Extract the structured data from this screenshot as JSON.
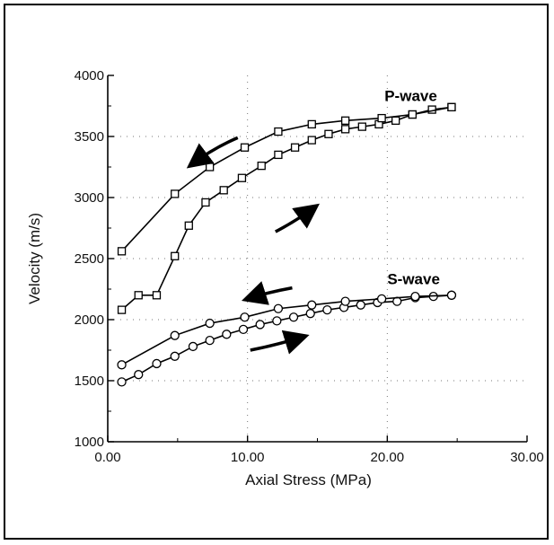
{
  "chart_data": {
    "type": "line",
    "xlabel": "Axial Stress (MPa)",
    "ylabel": "Velocity (m/s)",
    "xlim": [
      0,
      30
    ],
    "ylim": [
      1000,
      4000
    ],
    "x_ticks": [
      "0.00",
      "10.00",
      "20.00",
      "30.00"
    ],
    "y_ticks": [
      "1000",
      "1500",
      "2000",
      "2500",
      "3000",
      "3500",
      "4000"
    ],
    "grid": "dotted",
    "series": [
      {
        "name": "P-wave",
        "segment": "loading",
        "marker": "square",
        "x": [
          1.0,
          2.2,
          3.5,
          4.8,
          5.8,
          7.0,
          8.3,
          9.6,
          11.0,
          12.2,
          13.4,
          14.6,
          15.8,
          17.0,
          18.2,
          19.4,
          20.6,
          21.8,
          23.2,
          24.6
        ],
        "y": [
          2080,
          2200,
          2200,
          2520,
          2770,
          2960,
          3060,
          3160,
          3260,
          3350,
          3410,
          3470,
          3520,
          3560,
          3580,
          3600,
          3630,
          3680,
          3720,
          3740
        ]
      },
      {
        "name": "P-wave",
        "segment": "unloading",
        "marker": "square",
        "x": [
          1.0,
          4.8,
          7.3,
          9.8,
          12.2,
          14.6,
          17.0,
          19.6,
          21.8,
          24.6
        ],
        "y": [
          2560,
          3030,
          3250,
          3410,
          3540,
          3600,
          3630,
          3650,
          3680,
          3740
        ]
      },
      {
        "name": "S-wave",
        "segment": "loading",
        "marker": "circle",
        "x": [
          1.0,
          2.2,
          3.5,
          4.8,
          6.1,
          7.3,
          8.5,
          9.7,
          10.9,
          12.1,
          13.3,
          14.5,
          15.7,
          16.9,
          18.1,
          19.3,
          20.7,
          22.0,
          23.3,
          24.6
        ],
        "y": [
          1490,
          1550,
          1640,
          1700,
          1780,
          1830,
          1880,
          1920,
          1960,
          1990,
          2020,
          2050,
          2080,
          2100,
          2120,
          2140,
          2150,
          2180,
          2190,
          2200
        ]
      },
      {
        "name": "S-wave",
        "segment": "unloading",
        "marker": "circle",
        "x": [
          1.0,
          4.8,
          7.3,
          9.8,
          12.2,
          14.6,
          17.0,
          19.6,
          22.0,
          24.6
        ],
        "y": [
          1630,
          1870,
          1970,
          2020,
          2090,
          2120,
          2150,
          2170,
          2190,
          2200
        ]
      }
    ],
    "annotations": [
      {
        "type": "series-label",
        "text": "P-wave"
      },
      {
        "type": "series-label",
        "text": "S-wave"
      },
      {
        "type": "arrow",
        "meaning": "P-wave unloading direction"
      },
      {
        "type": "arrow",
        "meaning": "P-wave loading direction"
      },
      {
        "type": "arrow",
        "meaning": "S-wave unloading direction"
      },
      {
        "type": "arrow",
        "meaning": "S-wave loading direction"
      }
    ]
  }
}
